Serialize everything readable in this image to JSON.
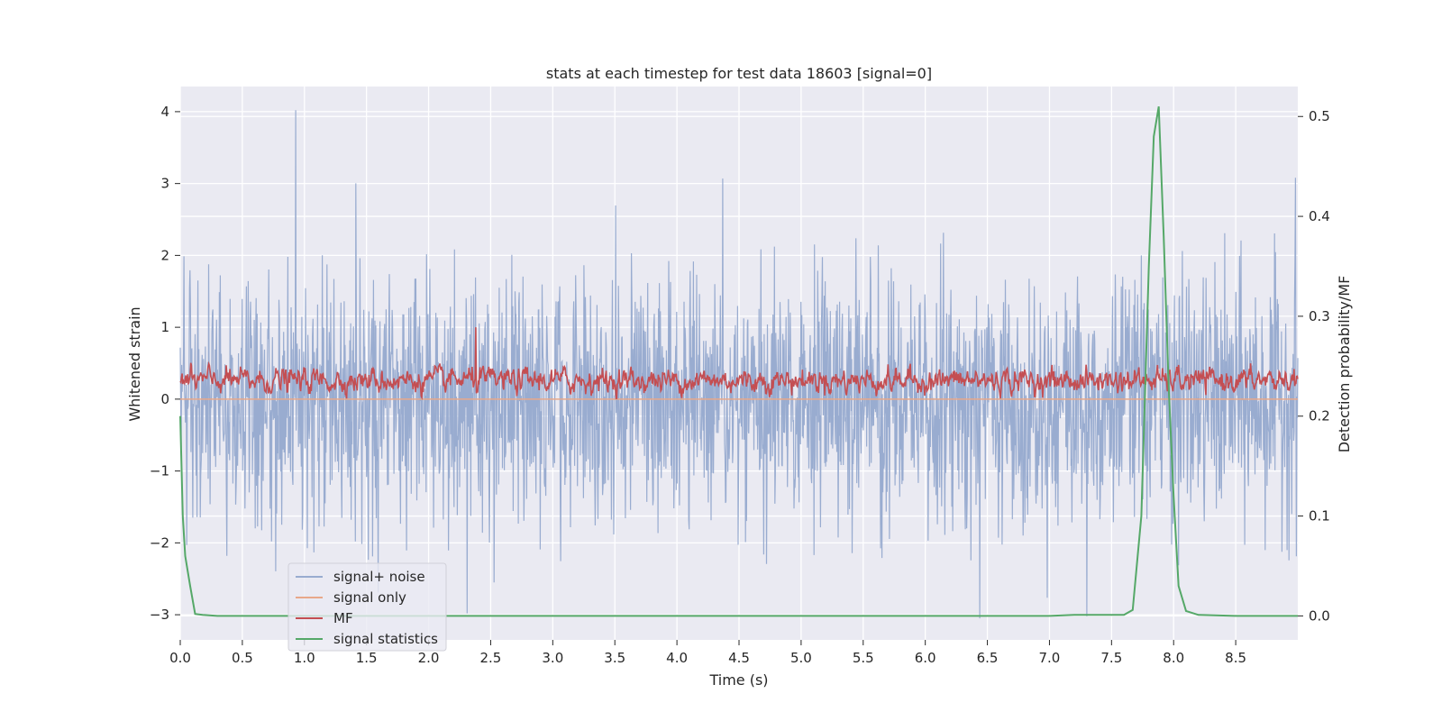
{
  "chart_data": {
    "type": "line",
    "title": "stats at each timestep for test data 18603 [signal=0]",
    "xlabel": "Time (s)",
    "ylabel": "Whitened strain",
    "y2label": "Detection probability/MF",
    "xlim": [
      0,
      9.0
    ],
    "ylim": [
      -3.35,
      4.35
    ],
    "y2lim": [
      -0.024,
      0.53
    ],
    "x_ticks": [
      "0.0",
      "0.5",
      "1.0",
      "1.5",
      "2.0",
      "2.5",
      "3.0",
      "3.5",
      "4.0",
      "4.5",
      "5.0",
      "5.5",
      "6.0",
      "6.5",
      "7.0",
      "7.5",
      "8.0",
      "8.5"
    ],
    "y_ticks": [
      "−3",
      "−2",
      "−1",
      "0",
      "1",
      "2",
      "3",
      "4"
    ],
    "y2_ticks": [
      "0.0",
      "0.1",
      "0.2",
      "0.3",
      "0.4",
      "0.5"
    ],
    "grid": true,
    "legend_position": "lower-left",
    "colors": {
      "background": "#eaeaf2",
      "grid": "#ffffff",
      "noise": "#99acd0",
      "signal_only": "#e8a88a",
      "mf": "#c44e52",
      "stats": "#55a868"
    },
    "series": [
      {
        "name": "signal+ noise",
        "axis": "left",
        "description": "whitened strain noise, roughly within -2.5 to 2.5 with spikes",
        "peaks": [
          {
            "x": 0.93,
            "y": 4.02
          },
          {
            "x": 4.37,
            "y": 3.07
          },
          {
            "x": 8.98,
            "y": 3.08
          },
          {
            "x": 6.44,
            "y": -3.05
          },
          {
            "x": 2.31,
            "y": -2.98
          },
          {
            "x": 7.3,
            "y": -3.02
          }
        ]
      },
      {
        "name": "signal only",
        "axis": "left",
        "x": [
          0,
          9.0
        ],
        "values": [
          0,
          0
        ]
      },
      {
        "name": "MF",
        "axis": "left",
        "description": "matched filter output around 0.25, range 0 to 0.8, spike near t=2.38",
        "peaks": [
          {
            "x": 2.38,
            "y": 1.0
          }
        ]
      },
      {
        "name": "signal statistics",
        "axis": "right",
        "x": [
          0.0,
          0.02,
          0.04,
          0.08,
          0.12,
          0.18,
          0.3,
          1.0,
          2.0,
          3.0,
          4.0,
          5.0,
          6.0,
          7.0,
          7.2,
          7.4,
          7.6,
          7.67,
          7.74,
          7.8,
          7.84,
          7.88,
          7.92,
          7.96,
          8.0,
          8.04,
          8.1,
          8.2,
          8.5,
          9.0
        ],
        "values": [
          0.2,
          0.1,
          0.06,
          0.03,
          0.002,
          0.001,
          0.0,
          0.0,
          0.0,
          0.0,
          0.0,
          0.0,
          0.0,
          0.0,
          0.001,
          0.001,
          0.001,
          0.006,
          0.1,
          0.35,
          0.48,
          0.51,
          0.38,
          0.23,
          0.12,
          0.03,
          0.005,
          0.001,
          0.0,
          0.0
        ]
      }
    ]
  }
}
